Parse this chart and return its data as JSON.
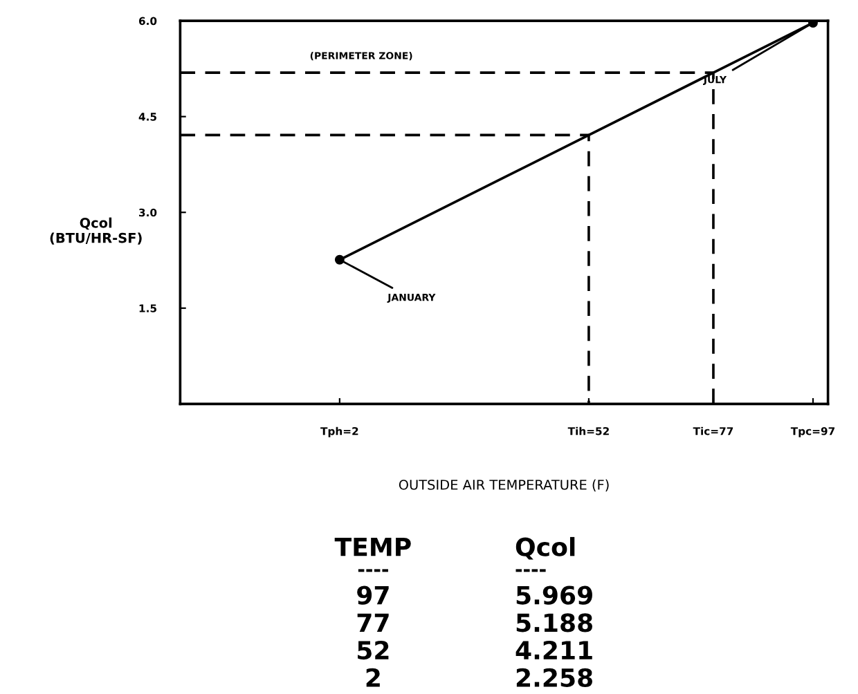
{
  "chart_data": [
    {
      "type": "line",
      "xlabel": "OUTSIDE AIR TEMPERATURE (F)",
      "ylabel": "Qcol\n(BTU/HR-SF)",
      "xlim": [
        -30,
        100
      ],
      "ylim": [
        0,
        6.0
      ],
      "xticks": [
        {
          "value": 2,
          "label": "Tph=2"
        },
        {
          "value": 52,
          "label": "Tih=52"
        },
        {
          "value": 77,
          "label": "Tic=77"
        },
        {
          "value": 97,
          "label": "Tpc=97"
        }
      ],
      "yticks": [
        {
          "value": 1.5,
          "label": "1.5"
        },
        {
          "value": 3.0,
          "label": "3.0"
        },
        {
          "value": 4.5,
          "label": "4.5"
        },
        {
          "value": 6.0,
          "label": "6.0"
        }
      ],
      "series": [
        {
          "color": "#000000",
          "x": [
            2,
            52,
            77,
            97
          ],
          "values": [
            2.258,
            4.211,
            5.188,
            5.969
          ],
          "marker": "circle"
        },
        {
          "color": "#000000",
          "x": [
            -30,
            77,
            77
          ],
          "values": [
            5.188,
            5.188,
            0
          ],
          "line_style": "dashed",
          "marker": "none"
        },
        {
          "color": "#000000",
          "x": [
            -30,
            52,
            52
          ],
          "values": [
            4.211,
            4.211,
            0
          ],
          "line_style": "dashed",
          "marker": "none"
        }
      ],
      "grid": false,
      "legend": false,
      "annotations": [
        "(PERIMETER ZONE)",
        {
          "text": "JULY",
          "x": 97,
          "y": 5.969
        },
        {
          "text": "JANUARY",
          "x": 2,
          "y": 2.258
        }
      ]
    },
    {
      "type": "other",
      "annotations": [
        "TEMP",
        "----",
        "97",
        "77",
        "52",
        "2",
        "Qcol",
        "----",
        "5.969",
        "5.188",
        "4.211",
        "2.258"
      ]
    }
  ]
}
